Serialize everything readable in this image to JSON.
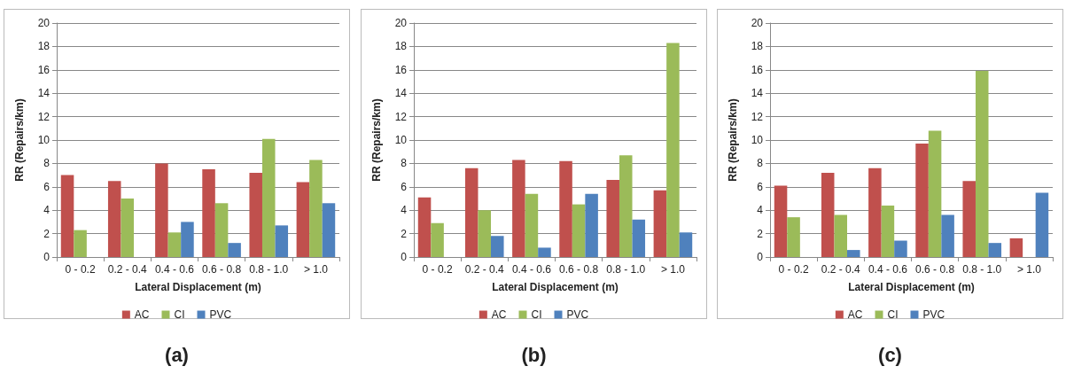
{
  "chart_data": [
    {
      "type": "bar",
      "title": "(a)",
      "xlabel": "Lateral Displacement (m)",
      "ylabel": "RR (Repairs/km)",
      "categories": [
        "0 - 0.2",
        "0.2 - 0.4",
        "0.4 - 0.6",
        "0.6 - 0.8",
        "0.8 - 1.0",
        "> 1.0"
      ],
      "series": [
        {
          "name": "AC",
          "color": "#c0504d",
          "values": [
            7.0,
            6.5,
            8.0,
            7.5,
            7.2,
            6.4
          ]
        },
        {
          "name": "CI",
          "color": "#9bbb59",
          "values": [
            2.3,
            5.0,
            2.1,
            4.6,
            10.1,
            8.3
          ]
        },
        {
          "name": "PVC",
          "color": "#4f81bd",
          "values": [
            0,
            0,
            3.0,
            1.2,
            2.7,
            4.6
          ]
        }
      ],
      "ylim": [
        0,
        20
      ],
      "yticks": [
        0,
        2,
        4,
        6,
        8,
        10,
        12,
        14,
        16,
        18,
        20
      ],
      "grid": "y",
      "legend": "bottom"
    },
    {
      "type": "bar",
      "title": "(b)",
      "xlabel": "Lateral Displacement (m)",
      "ylabel": "RR (Repairs/km)",
      "categories": [
        "0 - 0.2",
        "0.2 - 0.4",
        "0.4 - 0.6",
        "0.6 - 0.8",
        "0.8 - 1.0",
        "> 1.0"
      ],
      "series": [
        {
          "name": "AC",
          "color": "#c0504d",
          "values": [
            5.1,
            7.6,
            8.3,
            8.2,
            6.6,
            5.7
          ]
        },
        {
          "name": "CI",
          "color": "#9bbb59",
          "values": [
            2.9,
            4.0,
            5.4,
            4.5,
            8.7,
            18.3
          ]
        },
        {
          "name": "PVC",
          "color": "#4f81bd",
          "values": [
            0,
            1.8,
            0.8,
            5.4,
            3.2,
            2.1
          ]
        }
      ],
      "ylim": [
        0,
        20
      ],
      "yticks": [
        0,
        2,
        4,
        6,
        8,
        10,
        12,
        14,
        16,
        18,
        20
      ],
      "grid": "y",
      "legend": "bottom"
    },
    {
      "type": "bar",
      "title": "(c)",
      "xlabel": "Lateral Displacement (m)",
      "ylabel": "RR (Repairs/km)",
      "categories": [
        "0 - 0.2",
        "0.2 - 0.4",
        "0.4 - 0.6",
        "0.6 - 0.8",
        "0.8 - 1.0",
        "> 1.0"
      ],
      "series": [
        {
          "name": "AC",
          "color": "#c0504d",
          "values": [
            6.1,
            7.2,
            7.6,
            9.7,
            6.5,
            1.6
          ]
        },
        {
          "name": "CI",
          "color": "#9bbb59",
          "values": [
            3.4,
            3.6,
            4.4,
            10.8,
            15.9,
            0
          ]
        },
        {
          "name": "PVC",
          "color": "#4f81bd",
          "values": [
            0,
            0.6,
            1.4,
            3.6,
            1.2,
            5.5
          ]
        }
      ],
      "ylim": [
        0,
        20
      ],
      "yticks": [
        0,
        2,
        4,
        6,
        8,
        10,
        12,
        14,
        16,
        18,
        20
      ],
      "grid": "y",
      "legend": "bottom"
    }
  ]
}
